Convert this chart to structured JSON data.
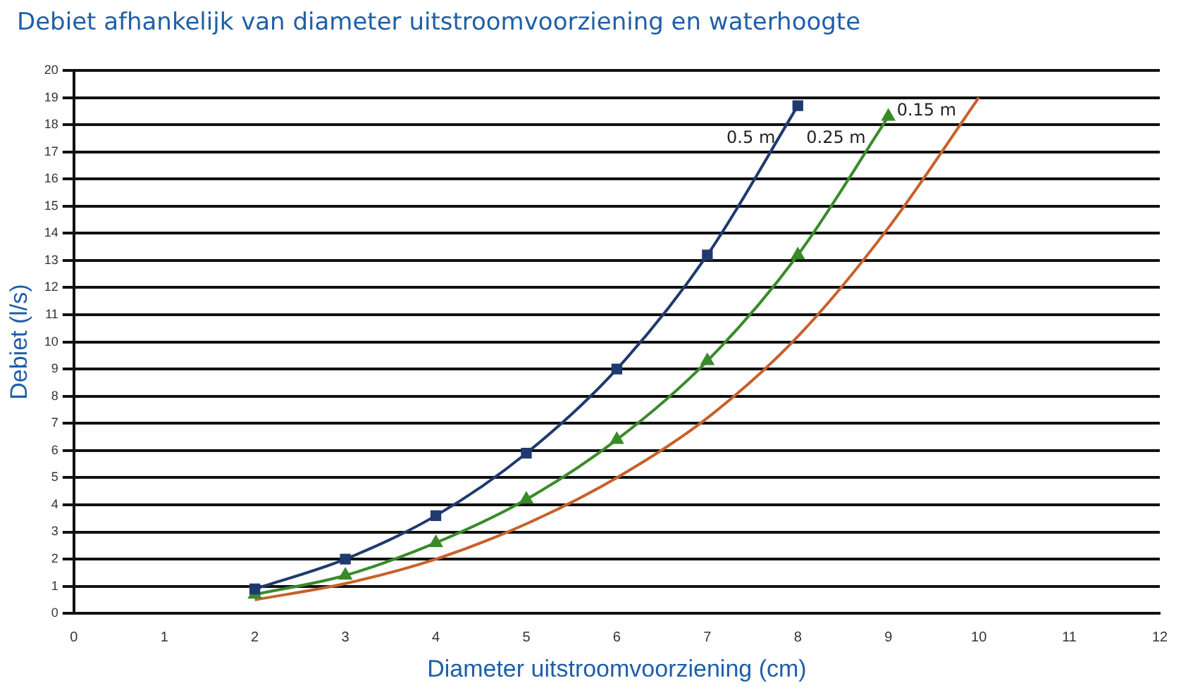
{
  "chart_data": {
    "type": "line",
    "title": "Debiet afhankelijk van diameter uitstroomvoorziening en waterhoogte",
    "xlabel": "Diameter uitstroomvoorziening (cm)",
    "ylabel": "Debiet (l/s)",
    "series": [
      {
        "name": "0.5 m",
        "color": "#1f3a6e",
        "marker": "square",
        "x": [
          2,
          3,
          4,
          5,
          6,
          7,
          8
        ],
        "values": [
          0.9,
          2.0,
          3.6,
          5.9,
          9.0,
          13.2,
          18.7
        ]
      },
      {
        "name": "0.25 m",
        "color": "#3a8a2a",
        "marker": "triangle",
        "x": [
          2,
          3,
          4,
          5,
          6,
          7,
          8,
          9
        ],
        "values": [
          0.7,
          1.4,
          2.6,
          4.2,
          6.4,
          9.3,
          13.2,
          18.3
        ]
      },
      {
        "name": "0.15 m",
        "color": "#c8602a",
        "marker": "none",
        "x": [
          2,
          3,
          4,
          5,
          6,
          7,
          8,
          9,
          10
        ],
        "values": [
          0.5,
          1.1,
          2.0,
          3.3,
          5.0,
          7.2,
          10.2,
          14.2,
          19.0
        ]
      }
    ],
    "xlim": [
      0,
      12
    ],
    "xticks": [
      0,
      1,
      2,
      3,
      4,
      5,
      6,
      7,
      8,
      9,
      10,
      11,
      12
    ],
    "ylim": [
      0,
      20
    ],
    "yticks": [
      0,
      1,
      2,
      3,
      4,
      5,
      6,
      7,
      8,
      9,
      10,
      11,
      12,
      13,
      14,
      15,
      16,
      17,
      18,
      19,
      20
    ],
    "grid": "y",
    "legend": false
  }
}
